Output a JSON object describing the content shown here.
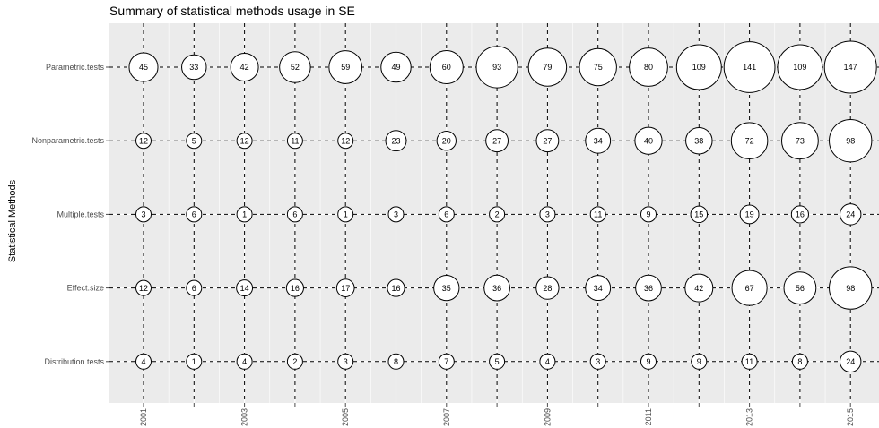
{
  "chart_data": {
    "type": "bubble",
    "title": "Summary of statistical methods usage in SE",
    "xlabel": "",
    "ylabel": "Statistical Methods",
    "x": [
      "2001",
      "2002",
      "2003",
      "2004",
      "2005",
      "2006",
      "2007",
      "2008",
      "2009",
      "2010",
      "2011",
      "2012",
      "2013",
      "2014",
      "2015"
    ],
    "x_tick_labels": [
      "2001",
      "2003",
      "2005",
      "2007",
      "2009",
      "2011",
      "2013",
      "2015"
    ],
    "categories": [
      "Parametric.tests",
      "Nonparametric.tests",
      "Multiple.tests",
      "Effect.size",
      "Distribution.tests"
    ],
    "series": [
      {
        "name": "Parametric.tests",
        "values": [
          45,
          33,
          42,
          52,
          59,
          49,
          60,
          93,
          79,
          75,
          80,
          109,
          141,
          109,
          147
        ]
      },
      {
        "name": "Nonparametric.tests",
        "values": [
          12,
          5,
          12,
          11,
          12,
          23,
          20,
          27,
          27,
          34,
          40,
          38,
          72,
          73,
          98
        ]
      },
      {
        "name": "Multiple.tests",
        "values": [
          3,
          6,
          1,
          6,
          1,
          3,
          6,
          2,
          3,
          11,
          9,
          15,
          19,
          16,
          24
        ]
      },
      {
        "name": "Effect.size",
        "values": [
          12,
          6,
          14,
          16,
          17,
          16,
          35,
          36,
          28,
          34,
          36,
          42,
          67,
          56,
          98
        ]
      },
      {
        "name": "Distribution.tests",
        "values": [
          4,
          1,
          4,
          2,
          3,
          8,
          7,
          5,
          4,
          3,
          9,
          9,
          11,
          8,
          24
        ]
      }
    ],
    "grid": true,
    "legend": "none",
    "colors": {
      "panel": "#ebebeb",
      "grid": "#ffffff",
      "bubble_fill": "#ffffff",
      "bubble_stroke": "#000000",
      "guide": "#000000",
      "tick_text": "#4d4d4d",
      "title_text": "#000000"
    }
  }
}
